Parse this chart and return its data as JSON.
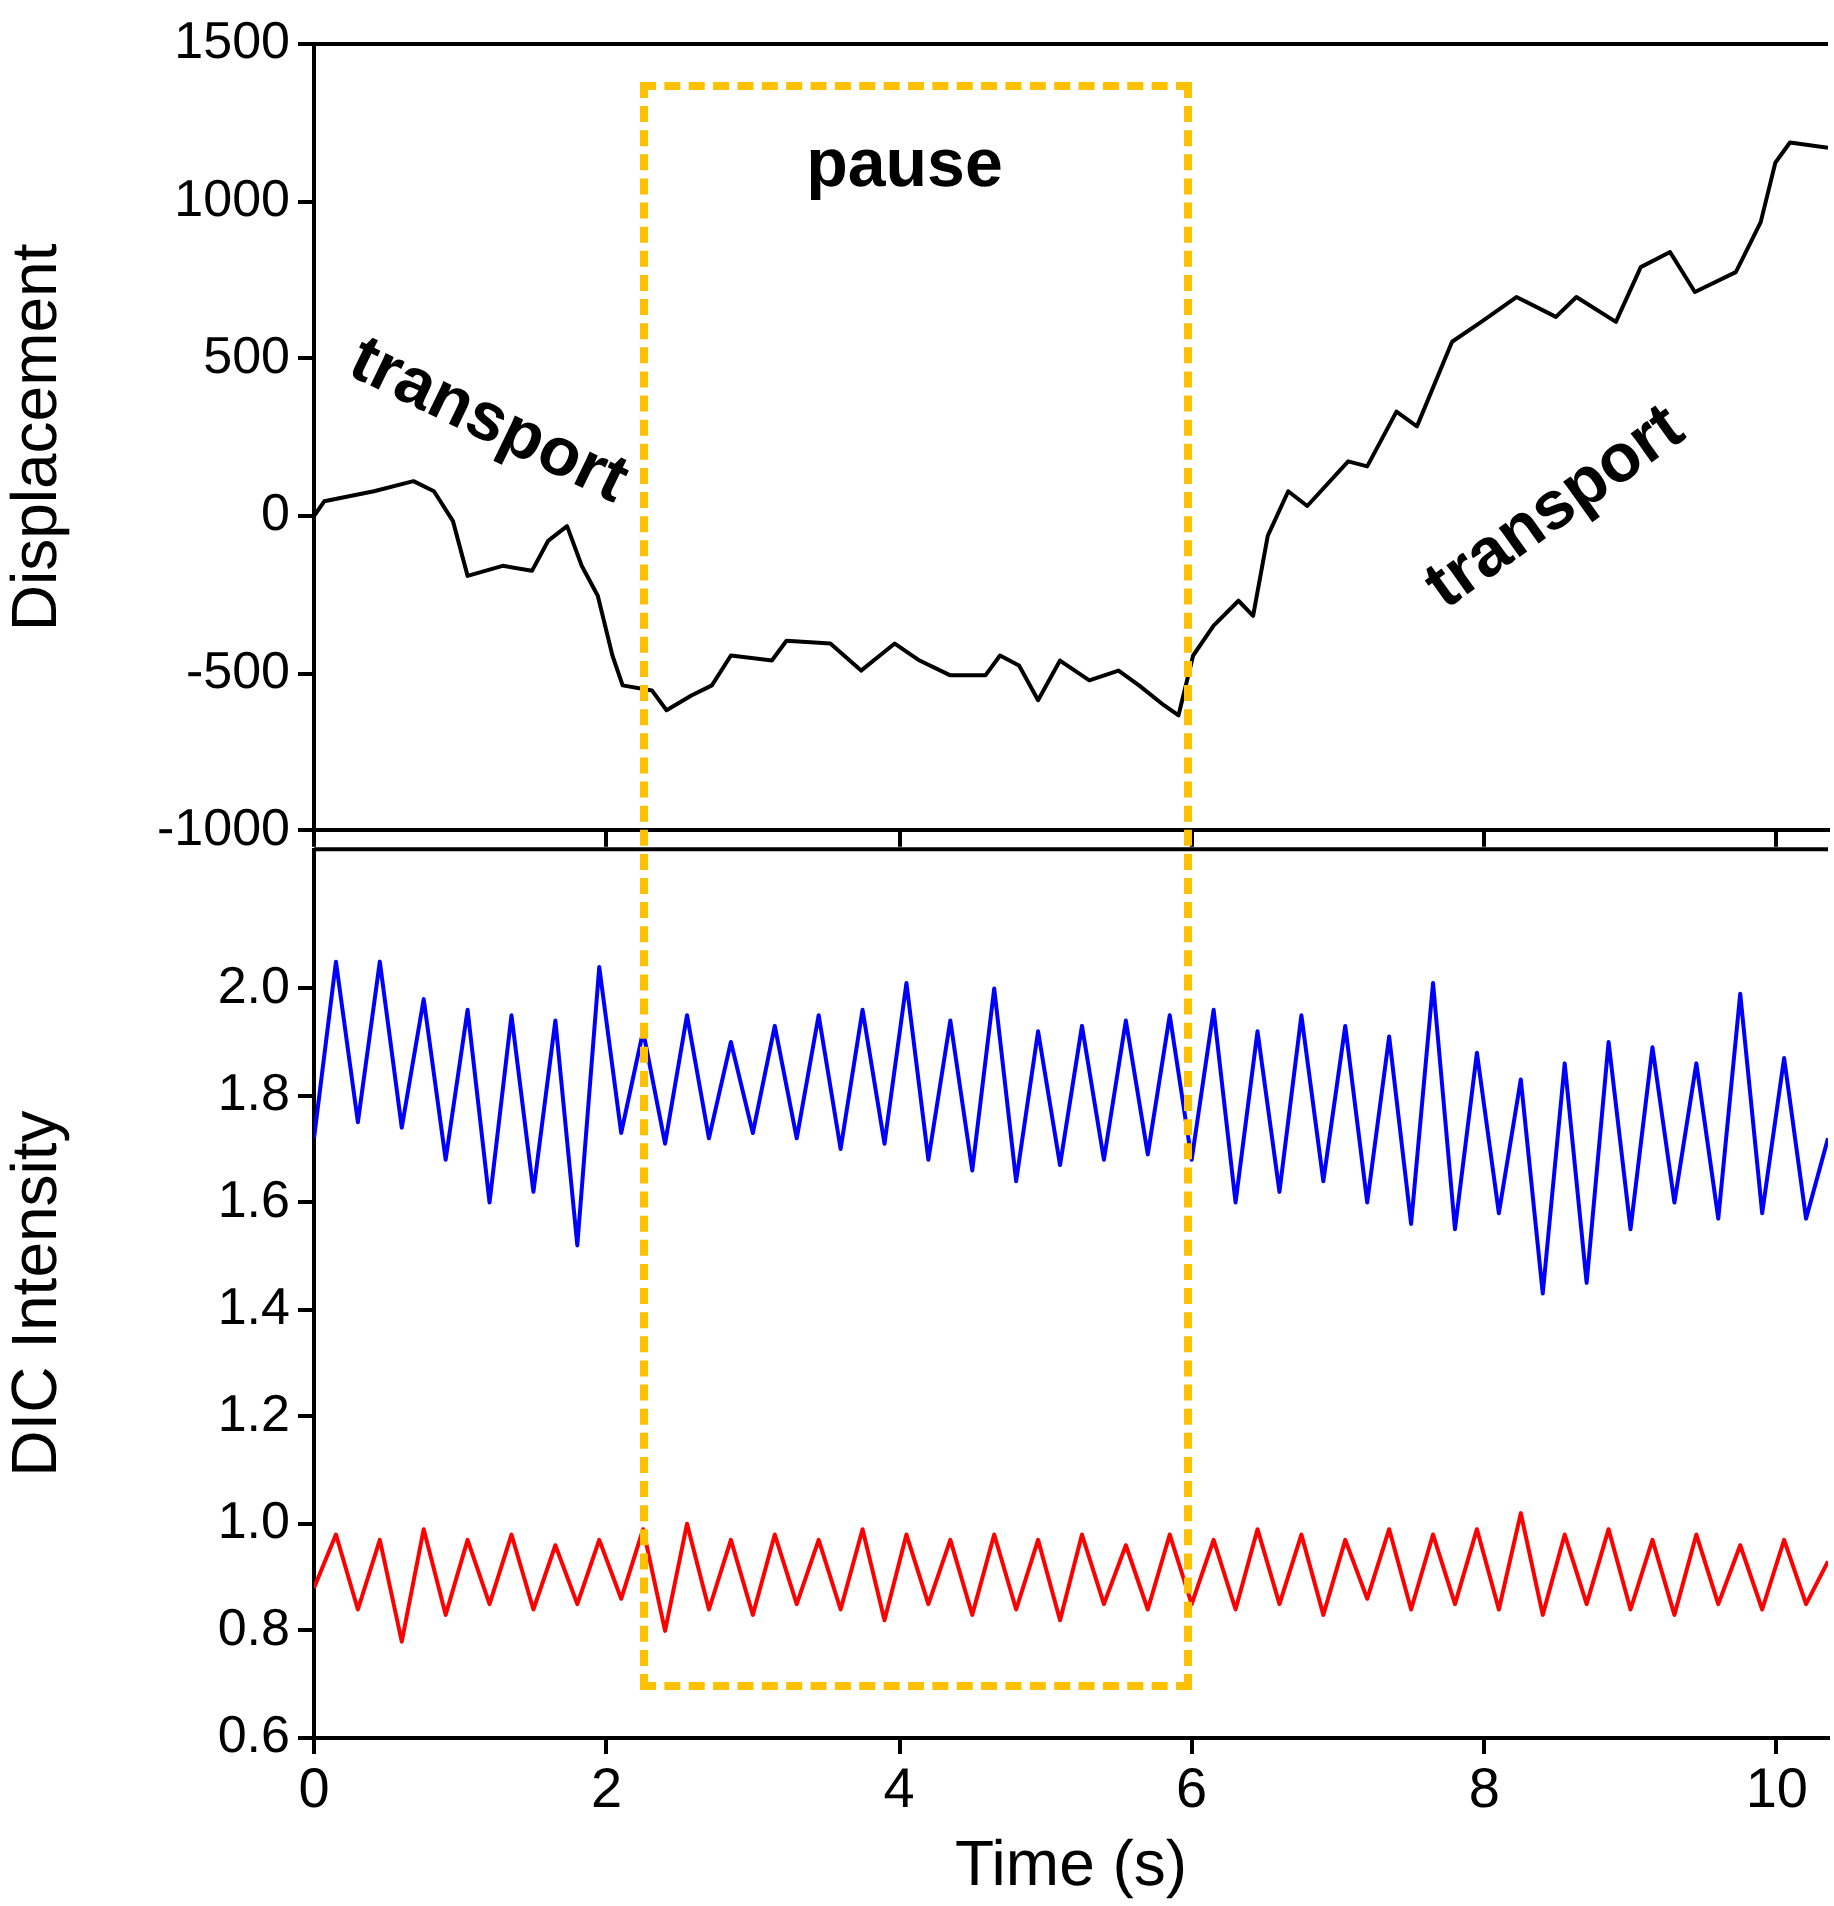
{
  "chart_data": [
    {
      "type": "line",
      "ylabel": "Displacement",
      "xlim": [
        0,
        10.35
      ],
      "xticks": [
        0,
        2,
        4,
        6,
        8,
        10
      ],
      "ylim": [
        -1000,
        1500
      ],
      "yticks": [
        -1000,
        -500,
        0,
        500,
        1000,
        1500
      ],
      "tick_labels": "y",
      "grid": false,
      "legend": false,
      "marker": "none",
      "line_style": "solid",
      "series": [
        {
          "color": "#000000",
          "x": [
            0,
            0.07,
            0.41,
            0.68,
            0.82,
            0.95,
            1.05,
            1.29,
            1.49,
            1.6,
            1.73,
            1.83,
            1.94,
            2.04,
            2.11,
            2.31,
            2.41,
            2.58,
            2.72,
            2.85,
            3.13,
            3.23,
            3.53,
            3.74,
            3.97,
            4.14,
            4.35,
            4.59,
            4.69,
            4.82,
            4.95,
            5.1,
            5.3,
            5.5,
            5.64,
            5.81,
            5.91,
            6.01,
            6.15,
            6.32,
            6.42,
            6.52,
            6.66,
            6.79,
            7.07,
            7.2,
            7.4,
            7.54,
            7.78,
            7.98,
            8.22,
            8.49,
            8.63,
            8.9,
            9.07,
            9.27,
            9.44,
            9.72,
            9.89,
            9.99,
            10.09,
            10.35
          ],
          "values": [
            0,
            47,
            79,
            111,
            79,
            -16,
            -190,
            -158,
            -174,
            -79,
            -32,
            -158,
            -253,
            -443,
            -538,
            -554,
            -617,
            -570,
            -538,
            -443,
            -459,
            -396,
            -405,
            -491,
            -405,
            -459,
            -506,
            -506,
            -443,
            -475,
            -585,
            -459,
            -522,
            -491,
            -538,
            -601,
            -633,
            -443,
            -348,
            -269,
            -317,
            -63,
            79,
            32,
            174,
            158,
            332,
            285,
            554,
            617,
            696,
            633,
            696,
            617,
            791,
            839,
            712,
            775,
            934,
            1123,
            1187,
            1170
          ]
        }
      ],
      "annotations": [
        "transport",
        "pause",
        "transport"
      ]
    },
    {
      "type": "line",
      "xlabel": "Time (s)",
      "ylabel": "DIC Intensity",
      "xlim": [
        0,
        10.35
      ],
      "xticks": [
        0,
        2,
        4,
        6,
        8,
        10
      ],
      "ylim": [
        0.6,
        2.26
      ],
      "yticks": [
        0.6,
        0.8,
        {
          "value": 1,
          "label": "1.0"
        },
        1.2,
        1.4,
        1.6,
        1.8,
        {
          "value": 2,
          "label": "2.0"
        }
      ],
      "grid": false,
      "legend": false,
      "marker": "none",
      "line_style": "solid",
      "x": [
        0,
        0.15,
        0.3,
        0.45,
        0.6,
        0.75,
        0.9,
        1.05,
        1.2,
        1.35,
        1.5,
        1.65,
        1.8,
        1.95,
        2.1,
        2.25,
        2.4,
        2.55,
        2.7,
        2.85,
        3,
        3.15,
        3.3,
        3.45,
        3.6,
        3.75,
        3.9,
        4.05,
        4.2,
        4.35,
        4.5,
        4.65,
        4.8,
        4.95,
        5.1,
        5.25,
        5.4,
        5.55,
        5.7,
        5.85,
        6,
        6.15,
        6.3,
        6.45,
        6.6,
        6.75,
        6.9,
        7.05,
        7.2,
        7.35,
        7.5,
        7.65,
        7.8,
        7.95,
        8.1,
        8.25,
        8.4,
        8.55,
        8.7,
        8.85,
        9,
        9.15,
        9.3,
        9.45,
        9.6,
        9.75,
        9.9,
        10.05,
        10.2,
        10.35
      ],
      "series": [
        {
          "color": "#0000ff",
          "values": [
            1.72,
            2.05,
            1.75,
            2.05,
            1.74,
            1.98,
            1.68,
            1.96,
            1.6,
            1.95,
            1.62,
            1.94,
            1.52,
            2.04,
            1.73,
            1.92,
            1.71,
            1.95,
            1.72,
            1.9,
            1.73,
            1.93,
            1.72,
            1.95,
            1.7,
            1.96,
            1.71,
            2.01,
            1.68,
            1.94,
            1.66,
            2.0,
            1.64,
            1.92,
            1.67,
            1.93,
            1.68,
            1.94,
            1.69,
            1.95,
            1.68,
            1.96,
            1.6,
            1.92,
            1.62,
            1.95,
            1.64,
            1.93,
            1.6,
            1.91,
            1.56,
            2.01,
            1.55,
            1.88,
            1.58,
            1.83,
            1.43,
            1.86,
            1.45,
            1.9,
            1.55,
            1.89,
            1.6,
            1.86,
            1.57,
            1.99,
            1.58,
            1.87,
            1.57,
            1.72
          ]
        },
        {
          "color": "#ff0000",
          "values": [
            0.88,
            0.98,
            0.84,
            0.97,
            0.78,
            0.99,
            0.83,
            0.97,
            0.85,
            0.98,
            0.84,
            0.96,
            0.85,
            0.97,
            0.86,
            0.99,
            0.8,
            1.0,
            0.84,
            0.97,
            0.83,
            0.98,
            0.85,
            0.97,
            0.84,
            0.99,
            0.82,
            0.98,
            0.85,
            0.97,
            0.83,
            0.98,
            0.84,
            0.97,
            0.82,
            0.98,
            0.85,
            0.96,
            0.84,
            0.98,
            0.85,
            0.97,
            0.84,
            0.99,
            0.85,
            0.98,
            0.83,
            0.97,
            0.86,
            0.99,
            0.84,
            0.98,
            0.85,
            0.99,
            0.84,
            1.02,
            0.83,
            0.98,
            0.85,
            0.99,
            0.84,
            0.97,
            0.83,
            0.98,
            0.85,
            0.96,
            0.84,
            0.97,
            0.85,
            0.93
          ]
        }
      ]
    }
  ]
}
